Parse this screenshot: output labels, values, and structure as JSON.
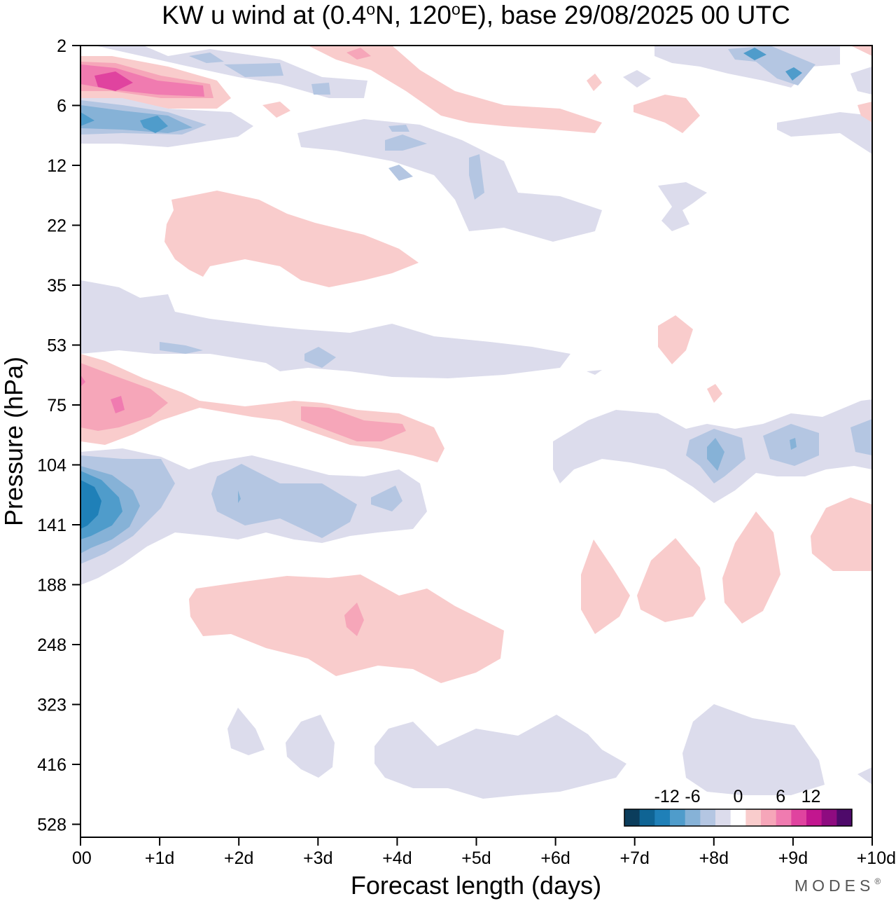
{
  "chart_data": {
    "type": "heatmap",
    "title": {
      "prefix": "KW u wind at (0.4",
      "lat_deg_mark": "o",
      "mid": "N, 120",
      "lon_deg_mark": "o",
      "suffix": "E),  base 29/08/2025  00 UTC"
    },
    "xlabel": "Forecast length (days)",
    "ylabel": "Pressure (hPa)",
    "x_ticks": [
      "00",
      "+1d",
      "+2d",
      "+3d",
      "+4d",
      "+5d",
      "+6d",
      "+7d",
      "+8d",
      "+9d",
      "+10d"
    ],
    "x_range_days": [
      0,
      10
    ],
    "y_ticks": [
      "2",
      "6",
      "12",
      "22",
      "35",
      "53",
      "75",
      "104",
      "141",
      "188",
      "248",
      "323",
      "416",
      "528"
    ],
    "y_scale": "log",
    "y_range_hpa": [
      2,
      528
    ],
    "colorbar": {
      "tick_labels": [
        "-12",
        "-6",
        "0",
        "6",
        "12"
      ],
      "levels": [
        -18,
        -15,
        -12,
        -9,
        -6,
        -3,
        0,
        3,
        6,
        9,
        12,
        15,
        18
      ],
      "colors": [
        "#0b3d5c",
        "#0f6494",
        "#1f80b8",
        "#4f9ccb",
        "#86b2d7",
        "#b4c6e2",
        "#dcdcec",
        "#ffffff",
        "#f9cccc",
        "#f6a6b9",
        "#f07bb0",
        "#e0439f",
        "#c2168f",
        "#8e0b80",
        "#4e0a6a"
      ]
    },
    "features": [
      {
        "name": "strat-pos-top",
        "value": 6,
        "day": 0.5,
        "hpa": 4
      },
      {
        "name": "strat-neg-top",
        "value": -6,
        "day": 0.8,
        "hpa": 8
      },
      {
        "name": "strat-pos-22",
        "value": 3,
        "day": 2.8,
        "hpa": 26
      },
      {
        "name": "neg-band-53",
        "value": -3,
        "day": 3.5,
        "hpa": 53
      },
      {
        "name": "pos-band-75",
        "value": 6,
        "day": 0.5,
        "hpa": 75
      },
      {
        "name": "neg-core-120",
        "value": -12,
        "day": 0.1,
        "hpa": 120
      },
      {
        "name": "pos-band-230",
        "value": 3,
        "day": 3.5,
        "hpa": 230
      },
      {
        "name": "neg-band-420",
        "value": -3,
        "day": 6.0,
        "hpa": 420
      },
      {
        "name": "neg-band-104-late",
        "value": -6,
        "day": 8.0,
        "hpa": 104
      },
      {
        "name": "pos-blobs-late",
        "value": 3,
        "day": 8.5,
        "hpa": 180
      }
    ],
    "legend_position": "bottom-right"
  },
  "branding": {
    "text": "MODES",
    "mark": "®"
  }
}
